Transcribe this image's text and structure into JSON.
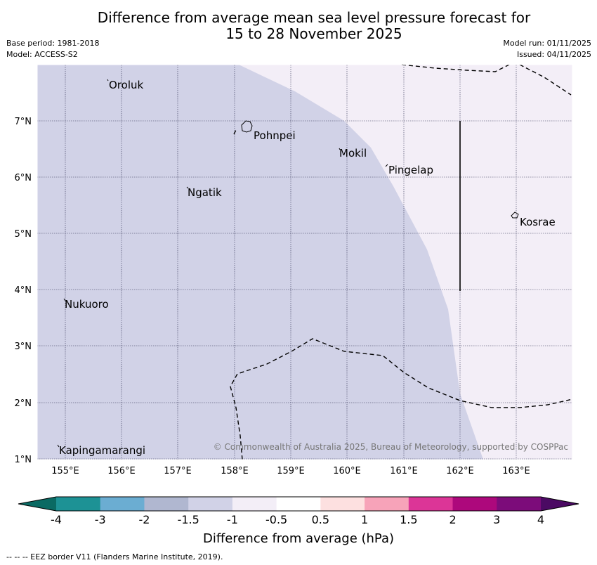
{
  "title_line1": "Difference from average mean sea level pressure forecast for",
  "title_line2": "15 to 28 November 2025",
  "base_period": "Base period: 1981-2018",
  "model": "Model: ACCESS-S2",
  "model_run": "Model run: 01/11/2025",
  "issued": "Issued: 04/11/2025",
  "copyright": "© Commonwealth of Australia 2025, Bureau of Meteorology, supported by COSPPac",
  "lon_labels": [
    "155°E",
    "156°E",
    "157°E",
    "158°E",
    "159°E",
    "160°E",
    "161°E",
    "162°E",
    "163°E"
  ],
  "lat_labels": [
    "7°N",
    "6°N",
    "5°N",
    "4°N",
    "3°N",
    "2°N",
    "1°N"
  ],
  "places": [
    "Oroluk",
    "Pohnpei",
    "Mokil",
    "Pingelap",
    "Ngatik",
    "Kosrae",
    "Nukuoro",
    "Kapingamarangi"
  ],
  "colorbar": {
    "ticks": [
      "-4",
      "-3",
      "-2",
      "-1.5",
      "-1",
      "-0.5",
      "0.5",
      "1",
      "1.5",
      "2",
      "3",
      "4"
    ],
    "label": "Difference from average (hPa)",
    "colors": [
      "#1d9295",
      "#6badd2",
      "#b0b7d0",
      "#d1d2e7",
      "#f3eef7",
      "#ffffff",
      "#fde0e0",
      "#f7a3b9",
      "#dc3597",
      "#ad087c",
      "#7c0c7a"
    ],
    "under_color": "#0a6a63",
    "over_color": "#4b0a63"
  },
  "fill_colors": {
    "minus1_to_minus1_5": "#d1d2e7",
    "minus0_5_to_minus1": "#f3eef7"
  },
  "eez_note": "--  --  -- EEZ border V11 (Flanders Marine Institute, 2019)."
}
